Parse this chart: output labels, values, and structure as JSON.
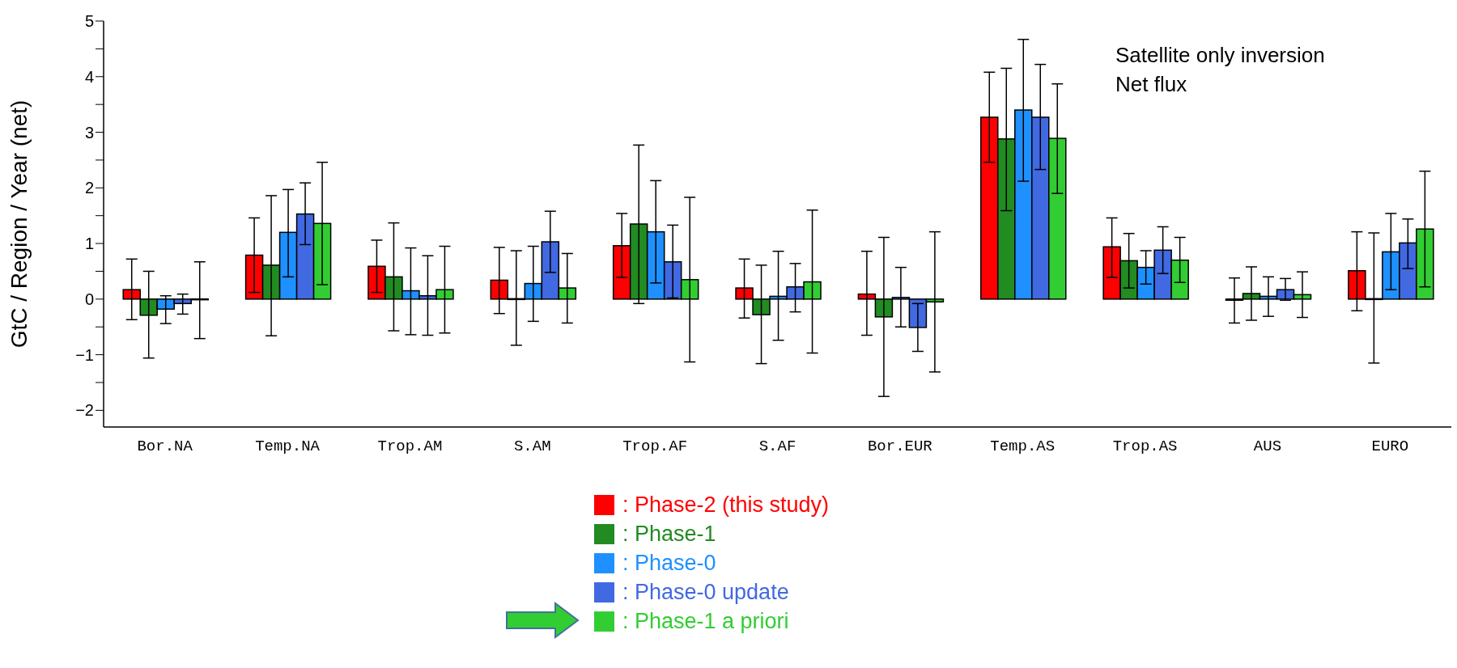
{
  "chart_data": {
    "type": "bar",
    "ylabel": "GtC / Region / Year (net)",
    "categories": [
      "Bor.NA",
      "Temp.NA",
      "Trop.AM",
      "S.AM",
      "Trop.AF",
      "S.AF",
      "Bor.EUR",
      "Temp.AS",
      "Trop.AS",
      "AUS",
      "EURO"
    ],
    "series": [
      {
        "name": ": Phase-2 (this study)",
        "color": "#ff0000",
        "values": [
          0.17,
          0.79,
          0.59,
          0.34,
          0.96,
          0.2,
          0.09,
          3.27,
          0.94,
          -0.02,
          0.51
        ],
        "errors": [
          [
            -0.37,
            0.72
          ],
          [
            0.12,
            1.46
          ],
          [
            0.12,
            1.06
          ],
          [
            -0.26,
            0.93
          ],
          [
            0.39,
            1.54
          ],
          [
            -0.34,
            0.72
          ],
          [
            -0.65,
            0.86
          ],
          [
            2.46,
            4.08
          ],
          [
            0.39,
            1.46
          ],
          [
            -0.43,
            0.38
          ],
          [
            -0.21,
            1.21
          ]
        ]
      },
      {
        "name": ": Phase-1",
        "color": "#228b22",
        "values": [
          -0.29,
          0.61,
          0.4,
          0.0,
          1.35,
          -0.28,
          -0.32,
          2.88,
          0.69,
          0.1,
          0.0
        ],
        "errors": [
          [
            -1.06,
            0.5
          ],
          [
            -0.66,
            1.86
          ],
          [
            -0.57,
            1.37
          ],
          [
            -0.83,
            0.87
          ],
          [
            -0.08,
            2.77
          ],
          [
            -1.16,
            0.61
          ],
          [
            -1.75,
            1.11
          ],
          [
            1.59,
            4.15
          ],
          [
            0.2,
            1.18
          ],
          [
            -0.38,
            0.58
          ],
          [
            -1.15,
            1.19
          ]
        ]
      },
      {
        "name": ": Phase-0",
        "color": "#1e90ff",
        "values": [
          -0.18,
          1.2,
          0.15,
          0.28,
          1.21,
          0.05,
          0.03,
          3.4,
          0.57,
          0.05,
          0.85
        ],
        "errors": [
          [
            -0.44,
            0.06
          ],
          [
            0.4,
            1.97
          ],
          [
            -0.64,
            0.92
          ],
          [
            -0.4,
            0.95
          ],
          [
            0.29,
            2.13
          ],
          [
            -0.74,
            0.86
          ],
          [
            -0.5,
            0.57
          ],
          [
            2.12,
            4.67
          ],
          [
            0.27,
            0.87
          ],
          [
            -0.31,
            0.4
          ],
          [
            0.17,
            1.54
          ]
        ]
      },
      {
        "name": ": Phase-0 update",
        "color": "#4169e1",
        "values": [
          -0.08,
          1.53,
          0.06,
          1.03,
          0.67,
          0.22,
          -0.51,
          3.27,
          0.88,
          0.17,
          1.01
        ],
        "errors": [
          [
            -0.27,
            0.09
          ],
          [
            0.98,
            2.09
          ],
          [
            -0.65,
            0.78
          ],
          [
            0.48,
            1.58
          ],
          [
            0.02,
            1.33
          ],
          [
            -0.23,
            0.64
          ],
          [
            -0.94,
            -0.08
          ],
          [
            2.33,
            4.22
          ],
          [
            0.46,
            1.3
          ],
          [
            -0.02,
            0.37
          ],
          [
            0.55,
            1.44
          ]
        ]
      },
      {
        "name": ": Phase-1 a priori",
        "color": "#32cd32",
        "values": [
          -0.01,
          1.36,
          0.17,
          0.2,
          0.35,
          0.31,
          -0.05,
          2.89,
          0.7,
          0.08,
          1.26
        ],
        "errors": [
          [
            -0.71,
            0.67
          ],
          [
            0.26,
            2.46
          ],
          [
            -0.61,
            0.95
          ],
          [
            -0.43,
            0.82
          ],
          [
            -1.13,
            1.83
          ],
          [
            -0.97,
            1.6
          ],
          [
            -1.31,
            1.21
          ],
          [
            1.9,
            3.87
          ],
          [
            0.3,
            1.11
          ],
          [
            -0.33,
            0.49
          ],
          [
            0.22,
            2.3
          ]
        ]
      }
    ],
    "ylim": [
      -2.3,
      5
    ],
    "yticks": [
      -2,
      {
        "value": -1.5,
        "label": null
      },
      -1,
      {
        "value": -0.5,
        "label": null
      },
      0,
      {
        "value": 0.5,
        "label": null
      },
      1,
      {
        "value": 1.5,
        "label": null
      },
      2,
      {
        "value": 2.5,
        "label": null
      },
      3,
      {
        "value": 3.5,
        "label": null
      },
      4,
      {
        "value": 4.5,
        "label": null
      },
      5
    ],
    "annotations": [
      "Satellite only inversion",
      "Net flux"
    ],
    "legend": "bottom"
  }
}
